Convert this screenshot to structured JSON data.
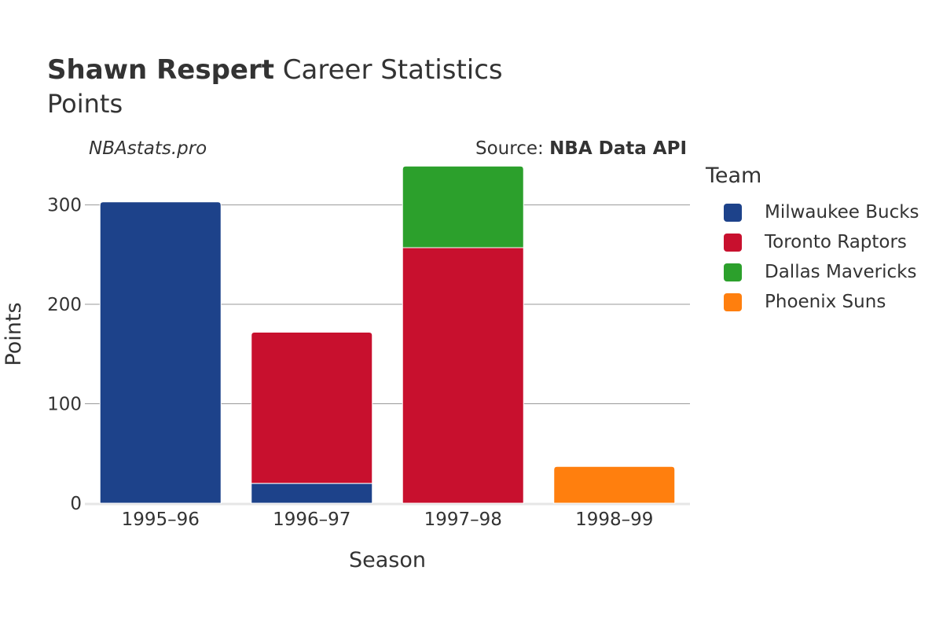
{
  "header": {
    "title_bold": "Shawn Respert",
    "title_rest": "Career Statistics",
    "subtitle": "Points",
    "watermark": "NBAstats.pro",
    "source_prefix": "Source: ",
    "source_bold": "NBA Data API"
  },
  "chart_data": {
    "type": "bar",
    "stacked": true,
    "categories": [
      "1995–96",
      "1996–97",
      "1997–98",
      "1998–99"
    ],
    "series": [
      {
        "name": "Milwaukee Bucks",
        "color": "#1d428a",
        "values": [
          303,
          20,
          0,
          0
        ]
      },
      {
        "name": "Toronto Raptors",
        "color": "#c8102e",
        "values": [
          0,
          152,
          257,
          0
        ]
      },
      {
        "name": "Dallas Mavericks",
        "color": "#2ca02c",
        "values": [
          0,
          0,
          82,
          0
        ]
      },
      {
        "name": "Phoenix Suns",
        "color": "#ff7f0e",
        "values": [
          0,
          0,
          0,
          37
        ]
      }
    ],
    "title": "Shawn Respert Career Statistics",
    "xlabel": "Season",
    "ylabel": "Points",
    "ylim": [
      0,
      340
    ],
    "yticks": [
      0,
      100,
      200,
      300
    ],
    "grid": true,
    "legend_title": "Team",
    "legend_position": "right"
  }
}
